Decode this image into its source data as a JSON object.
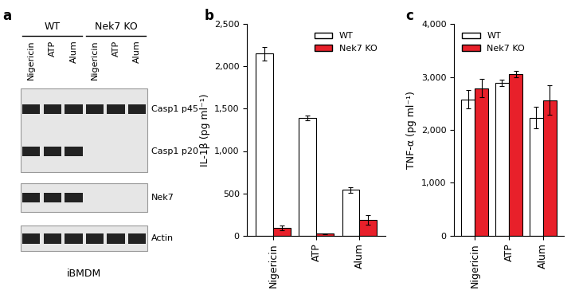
{
  "panel_labels": [
    "a",
    "b",
    "c"
  ],
  "blot": {
    "groups": [
      {
        "label": "WT",
        "lanes": 3
      },
      {
        "label": "Nek7 KO",
        "lanes": 3
      }
    ],
    "lanes": [
      "Nigericin",
      "ATP",
      "Alum",
      "Nigericin",
      "ATP",
      "Alum"
    ],
    "panels": [
      {
        "bands": [
          {
            "label": "Casp1 p45",
            "present": [
              true,
              true,
              true,
              true,
              true,
              true
            ]
          },
          {
            "label": "Casp1 p20",
            "present": [
              true,
              true,
              true,
              false,
              false,
              false
            ]
          }
        ]
      },
      {
        "bands": [
          {
            "label": "Nek7",
            "present": [
              true,
              true,
              true,
              false,
              false,
              false
            ]
          }
        ]
      },
      {
        "bands": [
          {
            "label": "Actin",
            "present": [
              true,
              true,
              true,
              true,
              true,
              true
            ]
          }
        ]
      }
    ],
    "caption": "iBMDM"
  },
  "chart_data": [
    {
      "type": "bar",
      "y_label": "IL-1β (pg ml⁻¹)",
      "categories": [
        "Nigericin",
        "ATP",
        "Alum"
      ],
      "series": [
        {
          "name": "WT",
          "color": "#ffffff",
          "values": [
            2150,
            1390,
            540
          ],
          "errors": [
            80,
            30,
            35
          ]
        },
        {
          "name": "Nek7 KO",
          "color": "#e8202a",
          "values": [
            90,
            20,
            185
          ],
          "errors": [
            25,
            5,
            60
          ]
        }
      ],
      "ylim": [
        0,
        2500
      ],
      "yticks": [
        0,
        500,
        {
          "value": 1000,
          "label": "1,000"
        },
        {
          "value": 1500,
          "label": "1,500"
        },
        {
          "value": 2000,
          "label": "2,000"
        },
        {
          "value": 2500,
          "label": "2,500"
        }
      ],
      "legend": "upper right"
    },
    {
      "type": "bar",
      "y_label": "TNF-α (pg ml⁻¹)",
      "categories": [
        "Nigericin",
        "ATP",
        "Alum"
      ],
      "series": [
        {
          "name": "WT",
          "color": "#ffffff",
          "values": [
            2580,
            2890,
            2230
          ],
          "errors": [
            180,
            60,
            200
          ]
        },
        {
          "name": "Nek7 KO",
          "color": "#e8202a",
          "values": [
            2790,
            3050,
            2560
          ],
          "errors": [
            170,
            60,
            280
          ]
        }
      ],
      "ylim": [
        0,
        4000
      ],
      "yticks": [
        0,
        {
          "value": 1000,
          "label": "1,000"
        },
        {
          "value": 2000,
          "label": "2,000"
        },
        {
          "value": 3000,
          "label": "3,000"
        },
        {
          "value": 4000,
          "label": "4,000"
        }
      ],
      "legend": "upper left"
    }
  ]
}
